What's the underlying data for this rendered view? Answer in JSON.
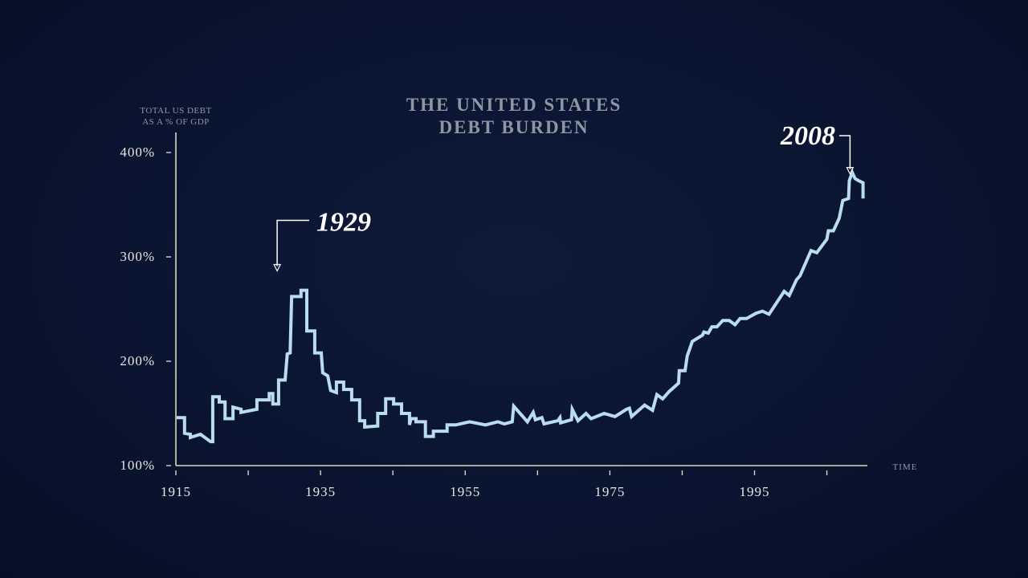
{
  "chart_data": {
    "type": "line",
    "title": [
      "THE UNITED STATES",
      "DEBT BURDEN"
    ],
    "ylabel": [
      "TOTAL US DEBT",
      "AS A % OF GDP"
    ],
    "xlabel": "TIME",
    "xlim": [
      1915,
      2010.6
    ],
    "ylim": [
      100,
      400
    ],
    "x_ticks": [
      1915,
      1935,
      1955,
      1975,
      1995
    ],
    "x_tick_labels": [
      "1915",
      "1935",
      "1955",
      "1975",
      "1995"
    ],
    "x_minor_ticks": [
      1925,
      1945,
      1965,
      1985,
      2005
    ],
    "y_ticks": [
      100,
      200,
      300,
      400
    ],
    "y_tick_labels": [
      "100%",
      "200%",
      "300%",
      "400%"
    ],
    "grid": false,
    "colors": {
      "line": "#b9dcef",
      "axis": "#d8d8bc",
      "background": "#0a1430"
    },
    "annotations": [
      {
        "text": "1929",
        "x": 1929,
        "y": 285
      },
      {
        "text": "2008",
        "x": 2008.2,
        "y": 388
      }
    ],
    "series": [
      {
        "name": "Total US debt as % of GDP",
        "points": [
          [
            1915.1,
            146
          ],
          [
            1916.2,
            146
          ],
          [
            1916.2,
            131
          ],
          [
            1917,
            130
          ],
          [
            1917,
            127
          ],
          [
            1918.4,
            130
          ],
          [
            1919.8,
            123
          ],
          [
            1920.1,
            123
          ],
          [
            1920.1,
            166
          ],
          [
            1921,
            166
          ],
          [
            1921,
            161
          ],
          [
            1921.8,
            161
          ],
          [
            1921.8,
            145
          ],
          [
            1922.9,
            145
          ],
          [
            1922.9,
            156
          ],
          [
            1924,
            154
          ],
          [
            1924,
            151
          ],
          [
            1926.2,
            154
          ],
          [
            1926.2,
            163
          ],
          [
            1927.9,
            163
          ],
          [
            1927.9,
            169
          ],
          [
            1928.4,
            169
          ],
          [
            1928.4,
            159
          ],
          [
            1929.2,
            159
          ],
          [
            1929.2,
            182
          ],
          [
            1930.1,
            182
          ],
          [
            1930.4,
            207
          ],
          [
            1930.8,
            208
          ],
          [
            1931,
            262
          ],
          [
            1932.3,
            262
          ],
          [
            1932.3,
            268
          ],
          [
            1933.1,
            268
          ],
          [
            1933.1,
            229
          ],
          [
            1934.2,
            229
          ],
          [
            1934.2,
            208
          ],
          [
            1935.1,
            208
          ],
          [
            1935.3,
            189
          ],
          [
            1936,
            186
          ],
          [
            1936.4,
            172
          ],
          [
            1937.2,
            170
          ],
          [
            1937.2,
            180
          ],
          [
            1938.2,
            180
          ],
          [
            1938.2,
            173
          ],
          [
            1939.3,
            173
          ],
          [
            1939.3,
            163
          ],
          [
            1940.4,
            163
          ],
          [
            1940.4,
            143
          ],
          [
            1941.1,
            143
          ],
          [
            1941.1,
            137
          ],
          [
            1942.9,
            138
          ],
          [
            1942.9,
            150
          ],
          [
            1944,
            150
          ],
          [
            1944,
            164
          ],
          [
            1945.1,
            164
          ],
          [
            1945.1,
            159
          ],
          [
            1946.2,
            159
          ],
          [
            1946.2,
            150
          ],
          [
            1947.3,
            150
          ],
          [
            1947.3,
            139
          ],
          [
            1947.5,
            145
          ],
          [
            1948.2,
            145
          ],
          [
            1948.2,
            142
          ],
          [
            1949.5,
            142
          ],
          [
            1949.5,
            128
          ],
          [
            1950.6,
            128
          ],
          [
            1950.6,
            133
          ],
          [
            1952.5,
            133
          ],
          [
            1952.5,
            139
          ],
          [
            1953.7,
            139
          ],
          [
            1955.6,
            142
          ],
          [
            1957.8,
            139
          ],
          [
            1959.5,
            142
          ],
          [
            1960.4,
            140
          ],
          [
            1961.5,
            142
          ],
          [
            1961.7,
            157
          ],
          [
            1963.6,
            142
          ],
          [
            1964.4,
            151
          ],
          [
            1964.7,
            144
          ],
          [
            1965.6,
            146
          ],
          [
            1965.9,
            140
          ],
          [
            1967.8,
            143
          ],
          [
            1968.1,
            146
          ],
          [
            1968.2,
            141
          ],
          [
            1969.7,
            144
          ],
          [
            1969.8,
            154
          ],
          [
            1970.6,
            143
          ],
          [
            1971.7,
            150
          ],
          [
            1972.4,
            145
          ],
          [
            1974.2,
            150
          ],
          [
            1975.7,
            147
          ],
          [
            1977.3,
            154
          ],
          [
            1977.7,
            155
          ],
          [
            1978,
            147
          ],
          [
            1979.8,
            158
          ],
          [
            1980.9,
            153
          ],
          [
            1981.5,
            168
          ],
          [
            1982.3,
            164
          ],
          [
            1983.2,
            171
          ],
          [
            1984.5,
            179
          ],
          [
            1984.6,
            191
          ],
          [
            1985.4,
            191
          ],
          [
            1985.7,
            205
          ],
          [
            1986.4,
            219
          ],
          [
            1987.8,
            225
          ],
          [
            1988,
            228
          ],
          [
            1988.6,
            227
          ],
          [
            1989.1,
            233
          ],
          [
            1989.8,
            233
          ],
          [
            1990.6,
            239
          ],
          [
            1991.5,
            239
          ],
          [
            1992.3,
            235
          ],
          [
            1993,
            241
          ],
          [
            1993.9,
            241
          ],
          [
            1995.2,
            246
          ],
          [
            1996.1,
            248
          ],
          [
            1997,
            245
          ],
          [
            1999.1,
            267
          ],
          [
            1999.8,
            263
          ],
          [
            2000.8,
            278
          ],
          [
            2001.3,
            282
          ],
          [
            2002.8,
            306
          ],
          [
            2003.6,
            304
          ],
          [
            2005,
            317
          ],
          [
            2005.2,
            325
          ],
          [
            2005.9,
            325
          ],
          [
            2006.7,
            337
          ],
          [
            2007.2,
            354
          ],
          [
            2008,
            356
          ],
          [
            2008.1,
            373
          ],
          [
            2008.5,
            381
          ],
          [
            2008.9,
            375
          ],
          [
            2009.4,
            373
          ],
          [
            2010,
            371
          ],
          [
            2010,
            356
          ]
        ]
      }
    ]
  }
}
